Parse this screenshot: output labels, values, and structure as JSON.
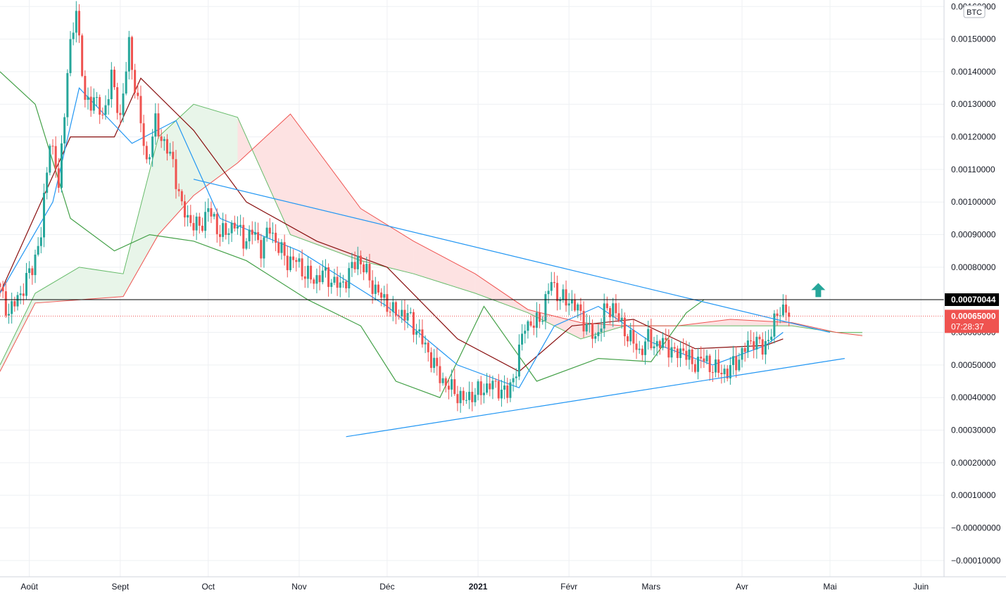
{
  "chart_data": {
    "type": "candlestick",
    "currency_label": "BTC",
    "y_axis": {
      "ylim": [
        -0.00015,
        0.00162
      ],
      "ticks": [
        "0.00160000",
        "0.00150000",
        "0.00140000",
        "0.00130000",
        "0.00120000",
        "0.00110000",
        "0.00100000",
        "0.00090000",
        "0.00080000",
        "0.00070000",
        "0.00060000",
        "0.00050000",
        "0.00040000",
        "0.00030000",
        "0.00020000",
        "0.00010000",
        "−0.00000000",
        "−0.00010000"
      ],
      "tick_values": [
        0.0016,
        0.0015,
        0.0014,
        0.0013,
        0.0012,
        0.0011,
        0.001,
        0.0009,
        0.0008,
        0.0007,
        0.0006,
        0.0005,
        0.0004,
        0.0003,
        0.0002,
        0.0001,
        0,
        -0.0001
      ]
    },
    "x_axis": {
      "labels": [
        "Août",
        "Sept",
        "Oct",
        "Nov",
        "Déc",
        "2021",
        "Févr",
        "Mars",
        "Avr",
        "Mai",
        "Juin"
      ],
      "dates": [
        "2020-08-01",
        "2020-09-01",
        "2020-10-01",
        "2020-11-01",
        "2020-12-01",
        "2021-01-01",
        "2021-02-01",
        "2021-03-01",
        "2021-04-01",
        "2021-05-01",
        "2021-06-01"
      ],
      "range": [
        "2020-07-22",
        "2021-06-30"
      ]
    },
    "price_lines": {
      "high_line": {
        "value": 0.00070044,
        "label": "0.00070044"
      },
      "last_price": {
        "value": 0.00065,
        "label": "0.00065000",
        "countdown": "07:28:37"
      }
    },
    "close_series": [
      [
        "2020-07-22",
        0.00075
      ],
      [
        "2020-07-26",
        0.00066
      ],
      [
        "2020-07-30",
        0.00072
      ],
      [
        "2020-08-03",
        0.0008
      ],
      [
        "2020-08-06",
        0.0009
      ],
      [
        "2020-08-09",
        0.0012
      ],
      [
        "2020-08-12",
        0.00105
      ],
      [
        "2020-08-15",
        0.0014
      ],
      [
        "2020-08-18",
        0.0016
      ],
      [
        "2020-08-21",
        0.0013
      ],
      [
        "2020-08-24",
        0.00132
      ],
      [
        "2020-08-27",
        0.00126
      ],
      [
        "2020-08-30",
        0.00138
      ],
      [
        "2020-09-02",
        0.00126
      ],
      [
        "2020-09-05",
        0.00148
      ],
      [
        "2020-09-08",
        0.0013
      ],
      [
        "2020-09-11",
        0.00112
      ],
      [
        "2020-09-14",
        0.00124
      ],
      [
        "2020-09-17",
        0.00118
      ],
      [
        "2020-09-20",
        0.00112
      ],
      [
        "2020-09-23",
        0.00098
      ],
      [
        "2020-09-26",
        0.00094
      ],
      [
        "2020-09-29",
        0.00092
      ],
      [
        "2020-10-02",
        0.00098
      ],
      [
        "2020-10-05",
        0.00092
      ],
      [
        "2020-10-08",
        0.0009
      ],
      [
        "2020-10-11",
        0.00094
      ],
      [
        "2020-10-14",
        0.00088
      ],
      [
        "2020-10-17",
        0.00091
      ],
      [
        "2020-10-20",
        0.00086
      ],
      [
        "2020-10-23",
        0.00092
      ],
      [
        "2020-10-26",
        0.00086
      ],
      [
        "2020-10-29",
        0.00082
      ],
      [
        "2020-11-01",
        0.00082
      ],
      [
        "2020-11-04",
        0.00078
      ],
      [
        "2020-11-07",
        0.00076
      ],
      [
        "2020-11-10",
        0.00078
      ],
      [
        "2020-11-13",
        0.00076
      ],
      [
        "2020-11-16",
        0.00074
      ],
      [
        "2020-11-19",
        0.00078
      ],
      [
        "2020-11-22",
        0.00083
      ],
      [
        "2020-11-25",
        0.00078
      ],
      [
        "2020-11-28",
        0.00073
      ],
      [
        "2020-12-01",
        0.0007
      ],
      [
        "2020-12-04",
        0.00066
      ],
      [
        "2020-12-07",
        0.00066
      ],
      [
        "2020-12-10",
        0.00064
      ],
      [
        "2020-12-13",
        0.00059
      ],
      [
        "2020-12-16",
        0.00054
      ],
      [
        "2020-12-19",
        0.00048
      ],
      [
        "2020-12-22",
        0.00044
      ],
      [
        "2020-12-25",
        0.00042
      ],
      [
        "2020-12-28",
        0.00039
      ],
      [
        "2020-12-31",
        0.00041
      ],
      [
        "2021-01-03",
        0.00042
      ],
      [
        "2021-01-06",
        0.00044
      ],
      [
        "2021-01-09",
        0.00043
      ],
      [
        "2021-01-12",
        0.00041
      ],
      [
        "2021-01-15",
        0.00049
      ],
      [
        "2021-01-18",
        0.00063
      ],
      [
        "2021-01-21",
        0.00062
      ],
      [
        "2021-01-24",
        0.00066
      ],
      [
        "2021-01-27",
        0.00076
      ],
      [
        "2021-01-30",
        0.0007
      ],
      [
        "2021-02-02",
        0.0007
      ],
      [
        "2021-02-05",
        0.00067
      ],
      [
        "2021-02-08",
        0.00062
      ],
      [
        "2021-02-11",
        0.00058
      ],
      [
        "2021-02-14",
        0.00066
      ],
      [
        "2021-02-17",
        0.00068
      ],
      [
        "2021-02-20",
        0.00062
      ],
      [
        "2021-02-23",
        0.00058
      ],
      [
        "2021-02-26",
        0.00054
      ],
      [
        "2021-03-01",
        0.00058
      ],
      [
        "2021-03-04",
        0.00056
      ],
      [
        "2021-03-07",
        0.00057
      ],
      [
        "2021-03-10",
        0.00053
      ],
      [
        "2021-03-13",
        0.00055
      ],
      [
        "2021-03-16",
        0.0005
      ],
      [
        "2021-03-19",
        0.00052
      ],
      [
        "2021-03-22",
        0.0005
      ],
      [
        "2021-03-25",
        0.00048
      ],
      [
        "2021-03-28",
        0.00048
      ],
      [
        "2021-03-31",
        0.00051
      ],
      [
        "2021-04-03",
        0.00055
      ],
      [
        "2021-04-06",
        0.00058
      ],
      [
        "2021-04-09",
        0.00055
      ],
      [
        "2021-04-12",
        0.0006
      ],
      [
        "2021-04-15",
        0.00068
      ],
      [
        "2021-04-18",
        0.00065
      ]
    ],
    "tenkan": [
      [
        "2020-07-22",
        0.00072
      ],
      [
        "2020-08-09",
        0.001
      ],
      [
        "2020-08-18",
        0.00135
      ],
      [
        "2020-09-05",
        0.00118
      ],
      [
        "2020-09-20",
        0.00125
      ],
      [
        "2020-10-05",
        0.00095
      ],
      [
        "2020-11-01",
        0.00085
      ],
      [
        "2020-12-01",
        0.00068
      ],
      [
        "2020-12-25",
        0.0005
      ],
      [
        "2021-01-15",
        0.00043
      ],
      [
        "2021-01-27",
        0.00062
      ],
      [
        "2021-02-11",
        0.00068
      ],
      [
        "2021-03-01",
        0.00057
      ],
      [
        "2021-03-22",
        0.0005
      ],
      [
        "2021-04-09",
        0.00056
      ],
      [
        "2021-04-15",
        0.0006
      ]
    ],
    "kijun": [
      [
        "2020-07-22",
        0.00072
      ],
      [
        "2020-08-15",
        0.0012
      ],
      [
        "2020-08-30",
        0.0012
      ],
      [
        "2020-09-08",
        0.00138
      ],
      [
        "2020-09-26",
        0.00122
      ],
      [
        "2020-10-14",
        0.001
      ],
      [
        "2020-11-07",
        0.00088
      ],
      [
        "2020-12-01",
        0.0008
      ],
      [
        "2020-12-25",
        0.00058
      ],
      [
        "2021-01-15",
        0.00048
      ],
      [
        "2021-02-02",
        0.00062
      ],
      [
        "2021-02-23",
        0.00064
      ],
      [
        "2021-03-16",
        0.00055
      ],
      [
        "2021-04-09",
        0.00056
      ],
      [
        "2021-04-15",
        0.00058
      ]
    ],
    "chikou": [
      [
        "2020-07-22",
        0.0014
      ],
      [
        "2020-08-03",
        0.0013
      ],
      [
        "2020-08-15",
        0.00095
      ],
      [
        "2020-08-30",
        0.00085
      ],
      [
        "2020-09-11",
        0.0009
      ],
      [
        "2020-09-26",
        0.00088
      ],
      [
        "2020-10-14",
        0.00082
      ],
      [
        "2020-11-04",
        0.0007
      ],
      [
        "2020-11-22",
        0.00062
      ],
      [
        "2020-12-04",
        0.00045
      ],
      [
        "2020-12-19",
        0.0004
      ],
      [
        "2021-01-03",
        0.00068
      ],
      [
        "2021-01-21",
        0.00045
      ],
      [
        "2021-02-11",
        0.00052
      ],
      [
        "2021-03-01",
        0.00051
      ],
      [
        "2021-03-13",
        0.00066
      ],
      [
        "2021-03-19",
        0.0007
      ]
    ],
    "cloud": {
      "span_a": [
        [
          "2020-07-22",
          0.0005
        ],
        [
          "2020-08-03",
          0.00072
        ],
        [
          "2020-08-18",
          0.0008
        ],
        [
          "2020-09-02",
          0.00078
        ],
        [
          "2020-09-14",
          0.0012
        ],
        [
          "2020-09-26",
          0.0013
        ],
        [
          "2020-10-11",
          0.00126
        ],
        [
          "2020-10-29",
          0.0009
        ],
        [
          "2020-11-22",
          0.00082
        ],
        [
          "2020-12-10",
          0.00078
        ],
        [
          "2020-12-31",
          0.00072
        ],
        [
          "2021-01-18",
          0.00066
        ],
        [
          "2021-02-05",
          0.00058
        ],
        [
          "2021-02-20",
          0.00062
        ],
        [
          "2021-03-10",
          0.00062
        ],
        [
          "2021-03-28",
          0.00062
        ],
        [
          "2021-04-18",
          0.00062
        ],
        [
          "2021-05-03",
          0.0006
        ],
        [
          "2021-05-12",
          0.0006
        ]
      ],
      "span_b": [
        [
          "2020-07-22",
          0.00048
        ],
        [
          "2020-08-03",
          0.00069
        ],
        [
          "2020-08-18",
          0.0007
        ],
        [
          "2020-09-02",
          0.00071
        ],
        [
          "2020-09-14",
          0.0009
        ],
        [
          "2020-09-26",
          0.00102
        ],
        [
          "2020-10-11",
          0.00112
        ],
        [
          "2020-10-29",
          0.00127
        ],
        [
          "2020-11-22",
          0.00098
        ],
        [
          "2020-12-10",
          0.00088
        ],
        [
          "2020-12-31",
          0.00078
        ],
        [
          "2021-01-18",
          0.00067
        ],
        [
          "2021-02-05",
          0.00063
        ],
        [
          "2021-02-20",
          0.00062
        ],
        [
          "2021-03-10",
          0.00062
        ],
        [
          "2021-03-28",
          0.00064
        ],
        [
          "2021-04-18",
          0.00063
        ],
        [
          "2021-05-03",
          0.0006
        ],
        [
          "2021-05-12",
          0.00059
        ]
      ]
    },
    "trendlines": [
      {
        "from": [
          "2020-09-26",
          0.00107
        ],
        "to": [
          "2021-05-01",
          0.0006
        ]
      },
      {
        "from": [
          "2020-11-17",
          0.00028
        ],
        "to": [
          "2021-05-06",
          0.00052
        ]
      }
    ],
    "annotation": {
      "type": "arrow-up",
      "date": "2021-04-27",
      "value": 0.00073,
      "color": "#26a69a"
    },
    "colors": {
      "up": "#26a69a",
      "down": "#ef5350",
      "tenkan": "#2196f3",
      "kijun": "#880e0e",
      "chikou": "#43a047",
      "cloud_bull": "#e8f5e9",
      "cloud_bear": "#fde2e2",
      "span_a_line": "#66bb6a",
      "span_b_line": "#ef5350",
      "trendline": "#2196f3"
    },
    "grid": true
  }
}
